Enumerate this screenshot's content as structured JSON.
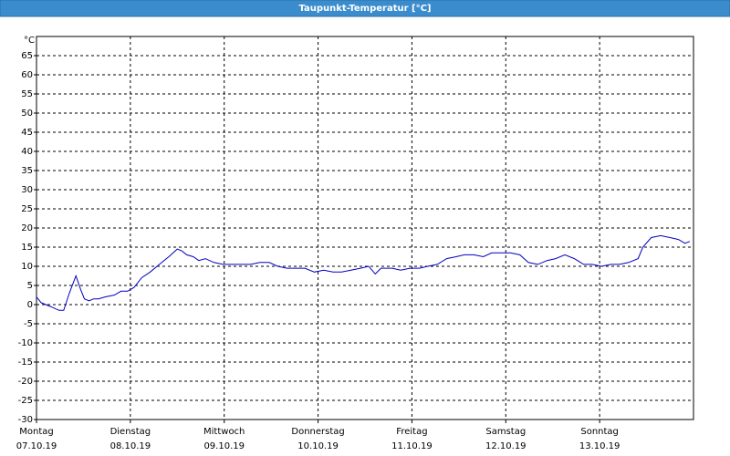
{
  "chart_data": {
    "type": "line",
    "title": "Taupunkt-Temperatur [°C]",
    "y_unit": "°C",
    "xlim": [
      0,
      7
    ],
    "ylim": [
      -30,
      70
    ],
    "xticks": [
      {
        "value": 0,
        "label": "Montag",
        "date": "07.10.19"
      },
      {
        "value": 1,
        "label": "Dienstag",
        "date": "08.10.19"
      },
      {
        "value": 2,
        "label": "Mittwoch",
        "date": "09.10.19"
      },
      {
        "value": 3,
        "label": "Donnerstag",
        "date": "10.10.19"
      },
      {
        "value": 4,
        "label": "Freitag",
        "date": "11.10.19"
      },
      {
        "value": 5,
        "label": "Samstag",
        "date": "12.10.19"
      },
      {
        "value": 6,
        "label": "Sonntag",
        "date": "13.10.19"
      }
    ],
    "yticks": [
      -30,
      -25,
      -20,
      -15,
      -10,
      -5,
      0,
      5,
      10,
      15,
      20,
      25,
      30,
      35,
      40,
      45,
      50,
      55,
      60,
      65
    ],
    "grid": true,
    "color": "#0000c0",
    "x": [
      0,
      0.05,
      0.15,
      0.24,
      0.29,
      0.35,
      0.42,
      0.47,
      0.51,
      0.56,
      0.61,
      0.66,
      0.73,
      0.83,
      0.9,
      0.97,
      1.04,
      1.12,
      1.21,
      1.31,
      1.41,
      1.5,
      1.55,
      1.6,
      1.67,
      1.73,
      1.8,
      1.89,
      1.99,
      2.09,
      2.18,
      2.28,
      2.38,
      2.48,
      2.57,
      2.67,
      2.77,
      2.86,
      2.96,
      3.06,
      3.16,
      3.25,
      3.35,
      3.45,
      3.54,
      3.61,
      3.67,
      3.79,
      3.88,
      3.98,
      4.08,
      4.17,
      4.27,
      4.37,
      4.47,
      4.56,
      4.66,
      4.76,
      4.85,
      4.95,
      5.05,
      5.15,
      5.24,
      5.34,
      5.44,
      5.53,
      5.63,
      5.73,
      5.83,
      5.92,
      6.02,
      6.12,
      6.21,
      6.31,
      6.41,
      6.46,
      6.55,
      6.65,
      6.75,
      6.84,
      6.91,
      6.96
    ],
    "values": [
      2,
      0.5,
      -0.5,
      -1.5,
      -1.5,
      3,
      7.5,
      4,
      1.5,
      1,
      1.5,
      1.5,
      2,
      2.5,
      3.5,
      3.5,
      4.5,
      7,
      8.5,
      10.5,
      12.5,
      14.5,
      14,
      13,
      12.5,
      11.5,
      12,
      11,
      10.5,
      10.5,
      10.5,
      10.5,
      11,
      11,
      10,
      9.5,
      9.5,
      9.5,
      8.5,
      9,
      8.5,
      8.5,
      9,
      9.5,
      10,
      8,
      9.5,
      9.5,
      9,
      9.5,
      9.5,
      10,
      10.5,
      12,
      12.5,
      13,
      13,
      12.5,
      13.5,
      13.5,
      13.5,
      13,
      11,
      10.5,
      11.5,
      12,
      13,
      12,
      10.5,
      10.5,
      10,
      10.5,
      10.5,
      11,
      12,
      15,
      17.5,
      18,
      17.5,
      17,
      16,
      16.5
    ]
  }
}
